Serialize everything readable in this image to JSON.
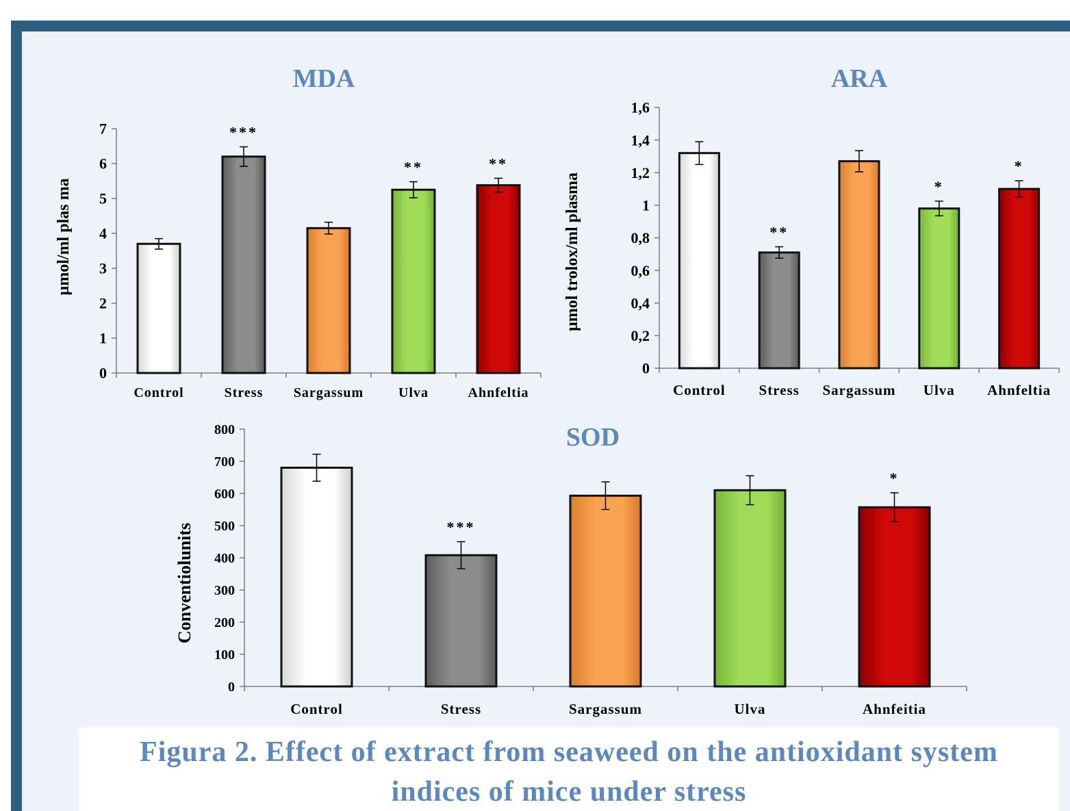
{
  "figure_caption": {
    "line1": "Figura  2. Effect of extract from seaweed on the antioxidant system",
    "line2": "indices of mice under stress"
  },
  "colors": {
    "frame": "#2e5f80",
    "panel": "#eef2f9",
    "title": "#5b88c0",
    "control": "#ffffff",
    "stress": "#8a8a8a",
    "sargassum": "#f9a050",
    "ulva": "#9ed957",
    "ahnfeltia": "#cc0606"
  },
  "chart_data": [
    {
      "type": "bar",
      "title": "MDA",
      "ylabel": "µmol/ml plas ma",
      "xlabel": "",
      "categories": [
        "Control",
        "Stress",
        "Sargassum",
        "Ulva",
        "Ahnfeltia"
      ],
      "values": [
        3.7,
        6.2,
        4.15,
        5.25,
        5.38
      ],
      "errors": [
        0.15,
        0.28,
        0.17,
        0.23,
        0.2
      ],
      "significance": [
        "",
        "***",
        "",
        "**",
        "**"
      ],
      "ylim": [
        0,
        7
      ],
      "yticks": [
        0,
        1,
        2,
        3,
        4,
        5,
        6,
        7
      ],
      "ytick_labels": [
        "0",
        "1",
        "2",
        "3",
        "4",
        "5",
        "6",
        "7"
      ],
      "grid": false,
      "legend": "none"
    },
    {
      "type": "bar",
      "title": "ARA",
      "ylabel": "µmol trolox/ml plasma",
      "xlabel": "",
      "categories": [
        "Control",
        "Stress",
        "Sargassum",
        "Ulva",
        "Ahnfeltia"
      ],
      "values": [
        1.32,
        0.71,
        1.27,
        0.98,
        1.1
      ],
      "errors": [
        0.07,
        0.035,
        0.065,
        0.045,
        0.05
      ],
      "significance": [
        "",
        "**",
        "",
        "*",
        "*"
      ],
      "ylim": [
        0,
        1.6
      ],
      "yticks": [
        0,
        0.2,
        0.4,
        0.6,
        0.8,
        1,
        1.2,
        1.4,
        1.6
      ],
      "ytick_labels": [
        "0",
        "0,2",
        "0,4",
        "0,6",
        "0,8",
        "1",
        "1,2",
        "1,4",
        "1,6"
      ],
      "grid": false,
      "legend": "none"
    },
    {
      "type": "bar",
      "title": "SOD",
      "ylabel": "Conventiolunits",
      "xlabel": "",
      "categories": [
        "Control",
        "Stress",
        "Sargassum",
        "Ulva",
        "Ahnfeitia"
      ],
      "values": [
        680,
        408,
        593,
        610,
        557
      ],
      "errors": [
        42,
        42,
        43,
        45,
        45
      ],
      "significance": [
        "",
        "***",
        "",
        "",
        "*"
      ],
      "ylim": [
        0,
        800
      ],
      "yticks": [
        0,
        100,
        200,
        300,
        400,
        500,
        600,
        700,
        800
      ],
      "ytick_labels": [
        "0",
        "100",
        "200",
        "300",
        "400",
        "500",
        "600",
        "700",
        "800"
      ],
      "grid": false,
      "legend": "none"
    }
  ]
}
